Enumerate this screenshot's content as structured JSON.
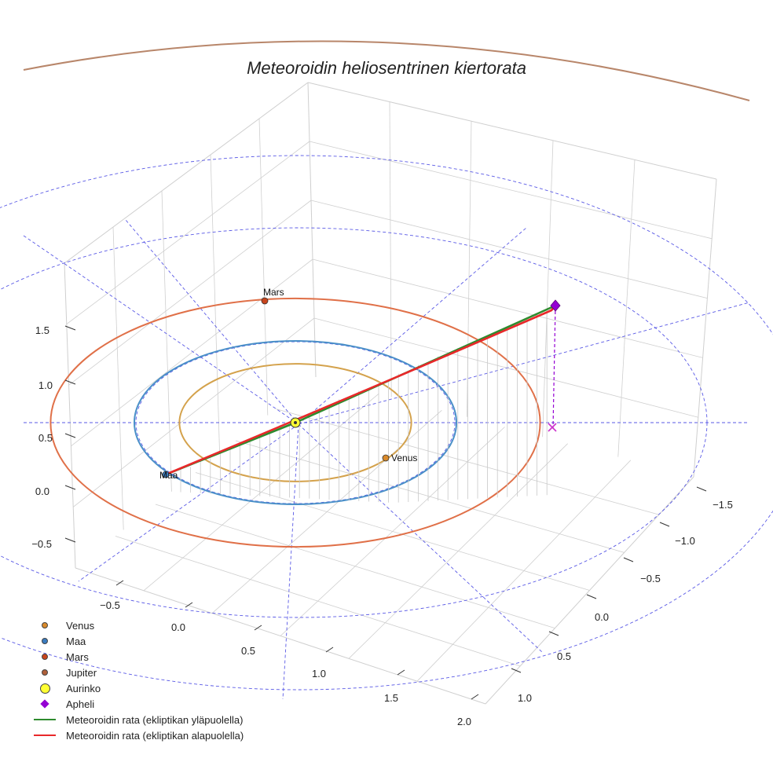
{
  "chart_data": {
    "type": "scatter",
    "title": "Meteoroidin heliosentrinen kiertorata",
    "axes": {
      "x": {
        "ticks": [
          -0.5,
          0.0,
          0.5,
          1.0,
          1.5,
          2.0
        ],
        "range": [
          -0.9,
          2.1
        ]
      },
      "y": {
        "ticks": [
          -1.5,
          -1.0,
          -0.5,
          0.0,
          0.5,
          1.0
        ],
        "range": [
          -1.6,
          1.3
        ]
      },
      "z": {
        "ticks": [
          -0.5,
          0.0,
          0.5,
          1.0,
          1.5
        ],
        "range": [
          -0.6,
          1.9
        ]
      }
    },
    "orbits": [
      {
        "name": "Venus orbit",
        "color": "#D4A24C",
        "radius": 0.72
      },
      {
        "name": "Maa orbit",
        "color": "#4A90C8",
        "radius": 1.0
      },
      {
        "name": "Mars orbit",
        "color": "#E07048",
        "radius": 1.52
      },
      {
        "name": "Jupiter orbit",
        "color": "#B8866A",
        "radius": 5.2
      }
    ],
    "bodies": [
      {
        "name": "Venus",
        "label": "Venus",
        "color": "#D98A2B"
      },
      {
        "name": "Maa",
        "label": "Maa",
        "color": "#3A7CC0"
      },
      {
        "name": "Mars",
        "label": "Mars",
        "color": "#C8441C"
      },
      {
        "name": "Aurinko",
        "label": "",
        "color": "#FFFF33"
      }
    ],
    "apheli": {
      "label": "Apheli",
      "color": "#9400D3"
    },
    "trajectory": [
      {
        "name": "Meteoroidin rata (ekliptikan yläpuolella)",
        "color": "#2E8B2E"
      },
      {
        "name": "Meteoroidin rata (ekliptikan alapuolella)",
        "color": "#E8282A"
      }
    ],
    "legend": [
      {
        "label": "Venus",
        "symbol": "dot",
        "color": "#D98A2B"
      },
      {
        "label": "Maa",
        "symbol": "dot",
        "color": "#3A7CC0"
      },
      {
        "label": "Mars",
        "symbol": "dot",
        "color": "#C8441C"
      },
      {
        "label": "Jupiter",
        "symbol": "dot",
        "color": "#B0603A"
      },
      {
        "label": "Aurinko",
        "symbol": "bigdot",
        "color": "#FFFF33"
      },
      {
        "label": "Apheli",
        "symbol": "diamond",
        "color": "#9400D3"
      },
      {
        "label": "Meteoroidin rata (ekliptikan yläpuolella)",
        "symbol": "line",
        "color": "#2E8B2E"
      },
      {
        "label": "Meteoroidin rata (ekliptikan alapuolella)",
        "symbol": "line",
        "color": "#E8282A"
      }
    ],
    "xlabel": "",
    "ylabel": "",
    "zlabel": ""
  }
}
